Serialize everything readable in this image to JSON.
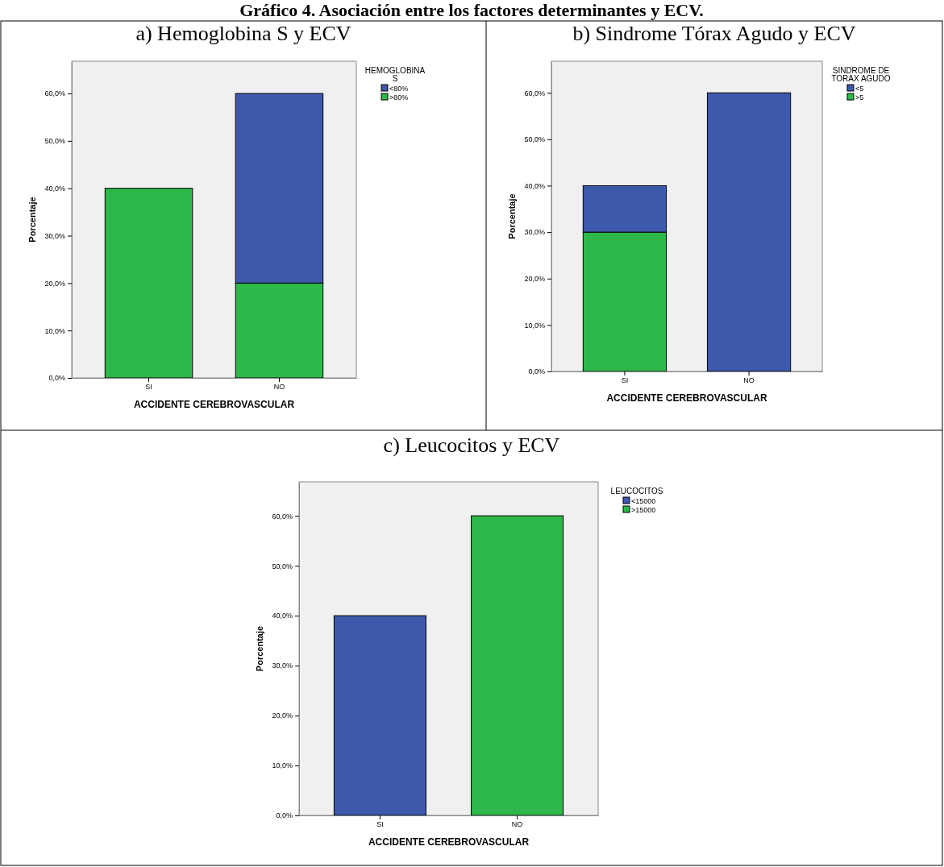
{
  "chart_data": [
    {
      "type": "bar",
      "stacked": true,
      "title": "a)  Hemoglobina S y ECV",
      "annotations": [
        "Gráfico 4. Asociación entre los factores determinantes y ECV."
      ],
      "xlabel": "ACCIDENTE CEREBROVASCULAR",
      "ylabel": "Porcentaje",
      "legend_title": "HEMOGLOBINA S",
      "legend": "right",
      "grid": false,
      "categories": [
        "SI",
        "NO"
      ],
      "ylim": [
        0,
        66.8
      ],
      "yticks": [
        {
          "value": 0,
          "label": "0,0%"
        },
        {
          "value": 10,
          "label": "10,0%"
        },
        {
          "value": 20,
          "label": "20,0%"
        },
        {
          "value": 30,
          "label": "30,0%"
        },
        {
          "value": 40,
          "label": "40,0%"
        },
        {
          "value": 50,
          "label": "50,0%"
        },
        {
          "value": 60,
          "label": "60,0%"
        }
      ],
      "series": [
        {
          "name": ">80%",
          "color": "#2eb84a",
          "values": [
            40,
            20
          ]
        },
        {
          "name": "<80%",
          "color": "#3e58ac",
          "values": [
            null,
            40
          ]
        }
      ]
    },
    {
      "type": "bar",
      "stacked": true,
      "title": "b)  Sindrome Tórax Agudo y ECV",
      "xlabel": "ACCIDENTE CEREBROVASCULAR",
      "ylabel": "Porcentaje",
      "legend_title": "SINDROME DE TORAX AGUDO",
      "legend": "right",
      "grid": false,
      "categories": [
        "SI",
        "NO"
      ],
      "ylim": [
        0,
        66.8
      ],
      "yticks": [
        {
          "value": 0,
          "label": "0,0%"
        },
        {
          "value": 10,
          "label": "10,0%"
        },
        {
          "value": 20,
          "label": "20,0%"
        },
        {
          "value": 30,
          "label": "30,0%"
        },
        {
          "value": 40,
          "label": "40,0%"
        },
        {
          "value": 50,
          "label": "50,0%"
        },
        {
          "value": 60,
          "label": "60,0%"
        }
      ],
      "series": [
        {
          "name": ">5",
          "color": "#2eb84a",
          "values": [
            30,
            null
          ]
        },
        {
          "name": "<5",
          "color": "#3e58ac",
          "values": [
            10,
            60
          ]
        }
      ]
    },
    {
      "type": "bar",
      "stacked": true,
      "title": "c)  Leucocitos y ECV",
      "xlabel": "ACCIDENTE CEREBROVASCULAR",
      "ylabel": "Porcentaje",
      "legend_title": "LEUCOCITOS",
      "legend": "right",
      "grid": false,
      "categories": [
        "SI",
        "NO"
      ],
      "ylim": [
        0,
        66.8
      ],
      "yticks": [
        {
          "value": 0,
          "label": "0,0%"
        },
        {
          "value": 10,
          "label": "10,0%"
        },
        {
          "value": 20,
          "label": "20,0%"
        },
        {
          "value": 30,
          "label": "30,0%"
        },
        {
          "value": 40,
          "label": "40,0%"
        },
        {
          "value": 50,
          "label": "50,0%"
        },
        {
          "value": 60,
          "label": "60,0%"
        }
      ],
      "series": [
        {
          "name": ">15000",
          "color": "#2eb84a",
          "values": [
            null,
            60
          ]
        },
        {
          "name": "<15000",
          "color": "#3e58ac",
          "values": [
            40,
            null
          ]
        }
      ]
    }
  ]
}
